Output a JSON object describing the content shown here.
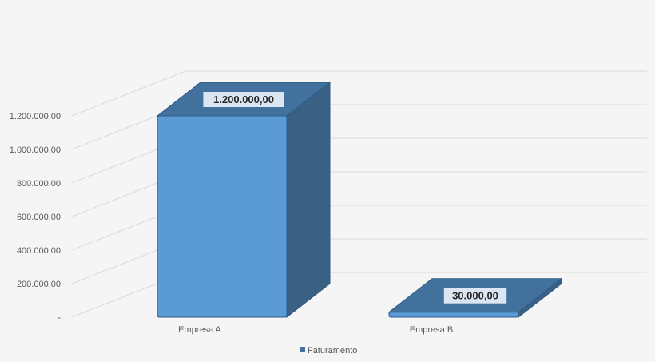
{
  "chart_data": {
    "type": "bar",
    "style": "3d-column",
    "categories": [
      "Empresa A",
      "Empresa B"
    ],
    "series": [
      {
        "name": "Faturamento",
        "values": [
          1200000,
          30000
        ]
      }
    ],
    "data_labels": [
      "1.200.000,00",
      "30.000,00"
    ],
    "y_ticks": [
      0,
      200000,
      400000,
      600000,
      800000,
      1000000,
      1200000
    ],
    "y_tick_labels": [
      "-",
      "200.000,00",
      "400.000,00",
      "600.000,00",
      "800.000,00",
      "1.000.000,00",
      "1.200.000,00"
    ],
    "ylim": [
      0,
      1200000
    ],
    "title": "",
    "xlabel": "",
    "ylabel": "",
    "grid": true,
    "legend": "bottom",
    "colors": {
      "bar_front": "#5b9bd5",
      "bar_top": "#41719c",
      "bar_side": "#3a6083",
      "bar_edge": "#2e5c8a",
      "grid": "#d9d9d9",
      "axis_text": "#595959",
      "label_bg": "#dce6f2"
    }
  }
}
